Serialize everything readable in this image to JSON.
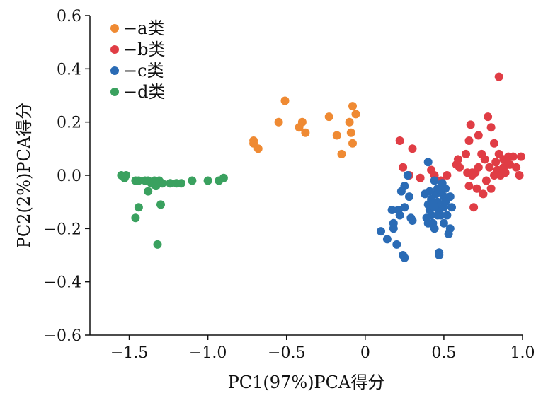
{
  "chart_data": {
    "type": "scatter",
    "xlabel": "PC1(97%)PCA得分",
    "ylabel": "PC2(2%)PCA得分",
    "xlim": [
      -1.75,
      1.0
    ],
    "ylim": [
      -0.6,
      0.6
    ],
    "x_ticks": [
      -1.5,
      -1.0,
      -0.5,
      0,
      0.5,
      1.0
    ],
    "x_tick_labels": [
      "−1.5",
      "−1.0",
      "−0.5",
      "0",
      "0.5",
      "1.0"
    ],
    "y_ticks": [
      0.6,
      0.4,
      0.2,
      0.0,
      -0.2,
      -0.4,
      -0.6
    ],
    "y_tick_labels": [
      "0.6",
      "0.4",
      "0.2",
      "0.0",
      "−0.2",
      "−0.4",
      "−0.6"
    ],
    "grid": false,
    "legend_position": "top-left",
    "series": [
      {
        "name": "−a类",
        "color": "#ef8a33",
        "points": [
          [
            -0.71,
            0.13
          ],
          [
            -0.71,
            0.12
          ],
          [
            -0.68,
            0.1
          ],
          [
            -0.55,
            0.2
          ],
          [
            -0.51,
            0.28
          ],
          [
            -0.42,
            0.18
          ],
          [
            -0.4,
            0.2
          ],
          [
            -0.38,
            0.16
          ],
          [
            -0.23,
            0.22
          ],
          [
            -0.18,
            0.15
          ],
          [
            -0.15,
            0.08
          ],
          [
            -0.1,
            0.2
          ],
          [
            -0.09,
            0.16
          ],
          [
            -0.08,
            0.26
          ],
          [
            -0.06,
            0.23
          ],
          [
            -0.08,
            0.12
          ]
        ]
      },
      {
        "name": "−b类",
        "color": "#e03d45",
        "points": [
          [
            0.22,
            0.13
          ],
          [
            0.3,
            0.1
          ],
          [
            0.24,
            0.03
          ],
          [
            0.28,
            0.0
          ],
          [
            0.35,
            -0.01
          ],
          [
            0.42,
            0.02
          ],
          [
            0.44,
            0.0
          ],
          [
            0.48,
            -0.02
          ],
          [
            0.52,
            0.0
          ],
          [
            0.58,
            0.04
          ],
          [
            0.59,
            0.06
          ],
          [
            0.6,
            0.03
          ],
          [
            0.64,
            0.08
          ],
          [
            0.66,
            0.13
          ],
          [
            0.67,
            0.19
          ],
          [
            0.65,
            0.01
          ],
          [
            0.68,
            0.01
          ],
          [
            0.7,
            0.01
          ],
          [
            0.68,
            0.0
          ],
          [
            0.66,
            -0.04
          ],
          [
            0.72,
            0.03
          ],
          [
            0.71,
            -0.05
          ],
          [
            0.69,
            -0.12
          ],
          [
            0.74,
            0.08
          ],
          [
            0.76,
            0.06
          ],
          [
            0.78,
            0.22
          ],
          [
            0.8,
            0.18
          ],
          [
            0.82,
            0.12
          ],
          [
            0.79,
            0.03
          ],
          [
            0.77,
            -0.02
          ],
          [
            0.8,
            -0.05
          ],
          [
            0.84,
            0.02
          ],
          [
            0.86,
            0.0
          ],
          [
            0.83,
            0.05
          ],
          [
            0.88,
            0.06
          ],
          [
            0.85,
            0.37
          ],
          [
            0.88,
            0.03
          ],
          [
            0.91,
            0.07
          ],
          [
            0.92,
            0.04
          ],
          [
            0.89,
            0.01
          ],
          [
            0.94,
            0.07
          ],
          [
            0.96,
            0.03
          ],
          [
            0.98,
            0.0
          ],
          [
            0.99,
            0.07
          ],
          [
            0.85,
            0.08
          ],
          [
            0.9,
            0.05
          ],
          [
            0.82,
            0.0
          ],
          [
            0.72,
            0.15
          ],
          [
            0.75,
            -0.07
          ]
        ]
      },
      {
        "name": "−c类",
        "color": "#2a6bb5",
        "points": [
          [
            0.1,
            -0.21
          ],
          [
            0.14,
            -0.24
          ],
          [
            0.17,
            -0.13
          ],
          [
            0.18,
            -0.18
          ],
          [
            0.18,
            -0.2
          ],
          [
            0.2,
            -0.26
          ],
          [
            0.21,
            -0.13
          ],
          [
            0.22,
            -0.15
          ],
          [
            0.24,
            -0.3
          ],
          [
            0.25,
            -0.31
          ],
          [
            0.25,
            -0.12
          ],
          [
            0.25,
            -0.04
          ],
          [
            0.23,
            -0.06
          ],
          [
            0.28,
            -0.08
          ],
          [
            0.27,
            0.0
          ],
          [
            0.29,
            -0.16
          ],
          [
            0.3,
            -0.17
          ],
          [
            0.4,
            0.05
          ],
          [
            0.38,
            -0.07
          ],
          [
            0.4,
            -0.11
          ],
          [
            0.41,
            -0.13
          ],
          [
            0.42,
            -0.15
          ],
          [
            0.43,
            -0.18
          ],
          [
            0.44,
            -0.2
          ],
          [
            0.45,
            -0.07
          ],
          [
            0.46,
            -0.1
          ],
          [
            0.47,
            -0.13
          ],
          [
            0.48,
            -0.15
          ],
          [
            0.46,
            -0.05
          ],
          [
            0.5,
            -0.08
          ],
          [
            0.51,
            -0.1
          ],
          [
            0.5,
            -0.12
          ],
          [
            0.52,
            -0.15
          ],
          [
            0.54,
            -0.2
          ],
          [
            0.53,
            -0.22
          ],
          [
            0.47,
            -0.29
          ],
          [
            0.47,
            -0.3
          ],
          [
            0.5,
            -0.18
          ],
          [
            0.44,
            -0.02
          ],
          [
            0.42,
            -0.09
          ],
          [
            0.39,
            -0.16
          ],
          [
            0.4,
            -0.18
          ],
          [
            0.44,
            -0.12
          ],
          [
            0.48,
            -0.06
          ],
          [
            0.49,
            -0.03
          ],
          [
            0.51,
            -0.05
          ],
          [
            0.54,
            -0.08
          ],
          [
            0.55,
            -0.12
          ],
          [
            0.43,
            -0.1
          ],
          [
            0.46,
            -0.15
          ],
          [
            0.41,
            -0.06
          ]
        ]
      },
      {
        "name": "−d类",
        "color": "#3aa15f",
        "points": [
          [
            -1.55,
            0.0
          ],
          [
            -1.53,
            -0.01
          ],
          [
            -1.52,
            0.0
          ],
          [
            -1.46,
            -0.02
          ],
          [
            -1.44,
            -0.02
          ],
          [
            -1.4,
            -0.02
          ],
          [
            -1.38,
            -0.02
          ],
          [
            -1.36,
            -0.03
          ],
          [
            -1.34,
            -0.02
          ],
          [
            -1.31,
            -0.02
          ],
          [
            -1.29,
            -0.03
          ],
          [
            -1.24,
            -0.03
          ],
          [
            -1.2,
            -0.03
          ],
          [
            -1.17,
            -0.03
          ],
          [
            -1.1,
            -0.02
          ],
          [
            -1.0,
            -0.02
          ],
          [
            -0.93,
            -0.02
          ],
          [
            -0.9,
            -0.01
          ],
          [
            -1.33,
            -0.04
          ],
          [
            -1.38,
            -0.06
          ],
          [
            -1.44,
            -0.12
          ],
          [
            -1.46,
            -0.16
          ],
          [
            -1.3,
            -0.11
          ],
          [
            -1.32,
            -0.26
          ]
        ]
      }
    ]
  }
}
